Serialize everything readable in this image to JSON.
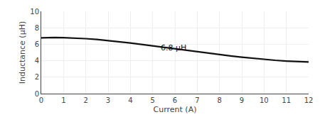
{
  "chart_data": {
    "type": "line",
    "xlabel": "Current (A)",
    "ylabel": "Inductance (μH)",
    "x": [
      0.0,
      0.3,
      0.6,
      1.0,
      1.5,
      2.0,
      2.5,
      3.0,
      3.5,
      4.0,
      4.5,
      5.0,
      5.5,
      6.0,
      6.5,
      7.0,
      7.5,
      8.0,
      8.5,
      9.0,
      9.5,
      10.0,
      10.5,
      11.0,
      11.5,
      12.0
    ],
    "values": [
      6.78,
      6.82,
      6.82,
      6.8,
      6.76,
      6.68,
      6.58,
      6.45,
      6.3,
      6.15,
      5.98,
      5.8,
      5.62,
      5.44,
      5.26,
      5.08,
      4.91,
      4.74,
      4.58,
      4.43,
      4.29,
      4.16,
      4.05,
      3.96,
      3.89,
      3.84
    ],
    "color": "#111111",
    "xlim": [
      0,
      12
    ],
    "ylim": [
      0,
      10
    ],
    "xticks": [
      0,
      1,
      2,
      3,
      4,
      5,
      6,
      7,
      8,
      9,
      10,
      11,
      12
    ],
    "yticks": [
      0,
      2,
      4,
      6,
      8,
      10
    ],
    "grid": true,
    "annotations": [
      {
        "text": "6.8 μH",
        "x": 5.3,
        "y": 5.55
      }
    ]
  }
}
